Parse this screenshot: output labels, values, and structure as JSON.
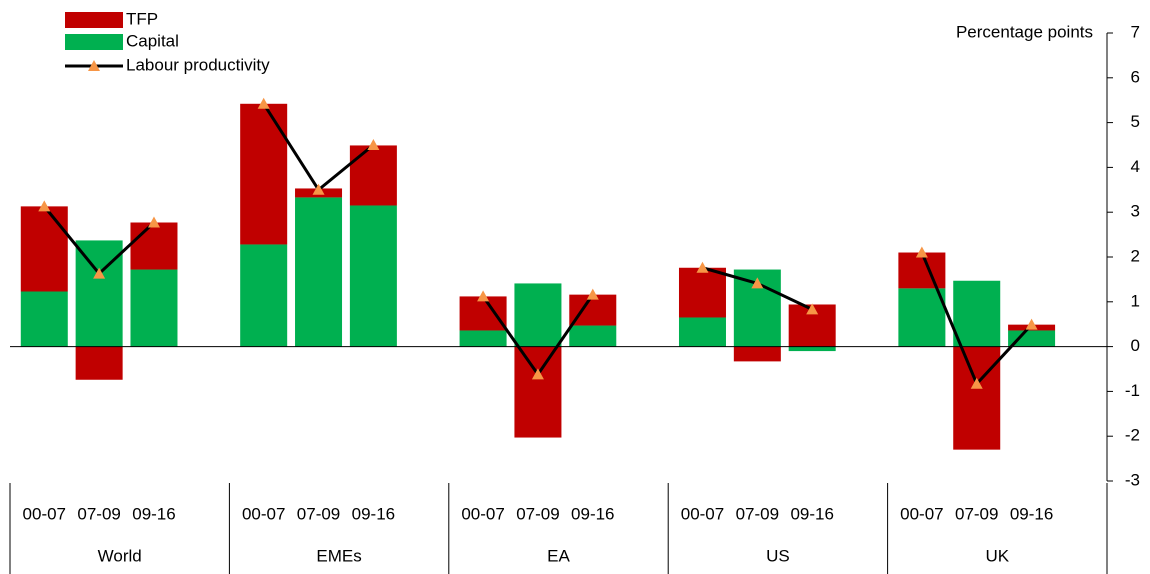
{
  "chart_data": {
    "type": "bar",
    "y_axis_label": "Percentage points",
    "categories": [
      "00-07",
      "07-09",
      "09-16",
      "00-07",
      "07-09",
      "09-16",
      "00-07",
      "07-09",
      "09-16",
      "00-07",
      "07-09",
      "09-16",
      "00-07",
      "07-09",
      "09-16"
    ],
    "groups": [
      "World",
      "EMEs",
      "EA",
      "US",
      "UK"
    ],
    "series": [
      {
        "name": "TFP",
        "color": "#c00000",
        "values": [
          1.9,
          -0.74,
          1.05,
          3.14,
          0.2,
          1.34,
          0.76,
          -2.03,
          0.69,
          1.11,
          -0.33,
          0.94,
          0.8,
          -2.3,
          0.13
        ]
      },
      {
        "name": "Capital",
        "color": "#00b050",
        "values": [
          1.23,
          2.37,
          1.72,
          2.28,
          3.33,
          3.15,
          0.36,
          1.41,
          0.47,
          0.65,
          1.72,
          -0.1,
          1.3,
          1.47,
          0.36
        ]
      },
      {
        "name": "Labour productivity",
        "type": "line",
        "color": "#000000",
        "marker_color": "#f79646",
        "values": [
          3.13,
          1.63,
          2.77,
          5.42,
          3.5,
          4.5,
          1.12,
          -0.62,
          1.16,
          1.76,
          1.41,
          0.83,
          2.1,
          -0.83,
          0.49
        ]
      }
    ],
    "ylim": [
      -3,
      7
    ],
    "yticks": [
      -3,
      -2,
      -1,
      0,
      1,
      2,
      3,
      4,
      5,
      6,
      7
    ]
  }
}
